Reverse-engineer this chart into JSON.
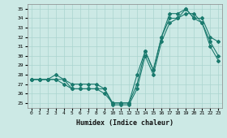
{
  "xlabel": "Humidex (Indice chaleur)",
  "background_color": "#cce9e5",
  "grid_color": "#aad4cf",
  "line_color": "#1a7a6e",
  "xlim": [
    -0.5,
    23.5
  ],
  "ylim": [
    24.5,
    35.5
  ],
  "yticks": [
    25,
    26,
    27,
    28,
    29,
    30,
    31,
    32,
    33,
    34,
    35
  ],
  "xticks": [
    0,
    1,
    2,
    3,
    4,
    5,
    6,
    7,
    8,
    9,
    10,
    11,
    12,
    13,
    14,
    15,
    16,
    17,
    18,
    19,
    20,
    21,
    22,
    23
  ],
  "line1_x": [
    0,
    1,
    2,
    3,
    4,
    5,
    6,
    7,
    8,
    9,
    10,
    11,
    12,
    13,
    14,
    15,
    16,
    17,
    18,
    19,
    20,
    21,
    22,
    23
  ],
  "line1_y": [
    27.5,
    27.5,
    27.5,
    27.5,
    27.0,
    26.5,
    26.5,
    26.5,
    26.5,
    26.0,
    25.0,
    25.0,
    25.0,
    27.0,
    30.5,
    28.5,
    32.0,
    34.0,
    34.0,
    34.5,
    34.5,
    33.5,
    31.5,
    30.0
  ],
  "line2_x": [
    0,
    1,
    2,
    3,
    4,
    5,
    6,
    7,
    8,
    9,
    10,
    11,
    12,
    13,
    14,
    15,
    16,
    17,
    18,
    19,
    20,
    21,
    22,
    23
  ],
  "line2_y": [
    27.5,
    27.5,
    27.5,
    27.5,
    27.5,
    26.5,
    26.5,
    26.5,
    26.5,
    26.5,
    24.8,
    24.8,
    24.8,
    26.5,
    30.0,
    28.0,
    31.5,
    33.5,
    34.0,
    35.0,
    34.0,
    33.5,
    31.0,
    29.5
  ],
  "line3_x": [
    0,
    1,
    2,
    3,
    4,
    5,
    6,
    7,
    8,
    9,
    10,
    11,
    12,
    13,
    14,
    15,
    16,
    17,
    18,
    19,
    20,
    21,
    22,
    23
  ],
  "line3_y": [
    27.5,
    27.5,
    27.5,
    28.0,
    27.5,
    27.0,
    27.0,
    27.0,
    27.0,
    26.5,
    25.0,
    25.0,
    25.0,
    28.0,
    30.5,
    28.5,
    32.0,
    34.5,
    34.5,
    35.0,
    34.0,
    34.0,
    32.0,
    31.5
  ]
}
